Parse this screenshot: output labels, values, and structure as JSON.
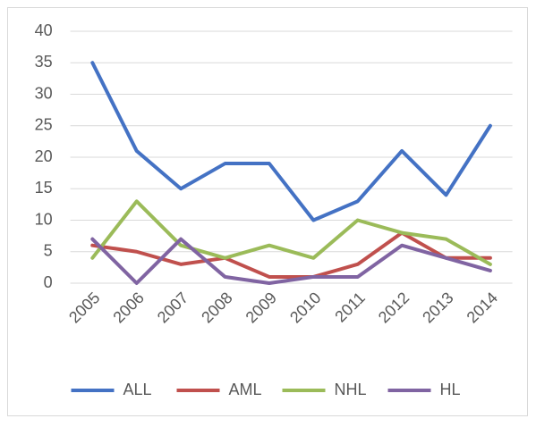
{
  "chart_data": {
    "type": "line",
    "categories": [
      "2005",
      "2006",
      "2007",
      "2008",
      "2009",
      "2010",
      "2011",
      "2012",
      "2013",
      "2014"
    ],
    "series": [
      {
        "name": "ALL",
        "color": "#4472c4",
        "values": [
          35,
          21,
          15,
          19,
          19,
          10,
          13,
          21,
          14,
          25
        ]
      },
      {
        "name": "AML",
        "color": "#c0504d",
        "values": [
          6,
          5,
          3,
          4,
          1,
          1,
          3,
          8,
          4,
          4
        ]
      },
      {
        "name": "NHL",
        "color": "#9bbb59",
        "values": [
          4,
          13,
          6,
          4,
          6,
          4,
          10,
          8,
          7,
          3
        ]
      },
      {
        "name": "HL",
        "color": "#8064a2",
        "values": [
          7,
          0,
          7,
          1,
          0,
          1,
          1,
          6,
          4,
          2
        ]
      }
    ],
    "ylim": [
      0,
      40
    ],
    "yticks": [
      0,
      5,
      10,
      15,
      20,
      25,
      30,
      35,
      40
    ],
    "grid": true,
    "legend": "bottom"
  }
}
